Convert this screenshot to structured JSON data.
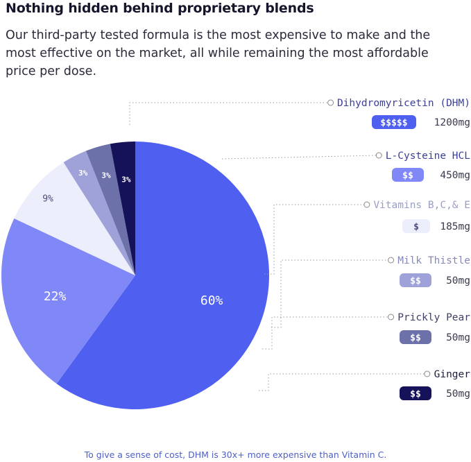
{
  "heading": {
    "title": "Nothing hidden behind proprietary blends",
    "subtitle": "Our third-party tested formula is the most expensive to make and the most effective on the market, all while remaining the most affordable price per dose."
  },
  "footnote": "To give a sense of cost, DHM is 30x+ more expensive than Vitamin C.",
  "chart_data": {
    "type": "pie",
    "title": "Nothing hidden behind proprietary blends",
    "slices": [
      {
        "label": "Dihydromyricetin (DHM)",
        "value": 60,
        "pct_label": "60%",
        "cost": "$$$$$",
        "dose": "1200mg",
        "color": "#4f5ff0",
        "label_color": "#3a3f9a",
        "badge_text_color": "#ffffff",
        "pct_text_color": "#ffffff"
      },
      {
        "label": "L-Cysteine HCL",
        "value": 22,
        "pct_label": "22%",
        "cost": "$$",
        "dose": "450mg",
        "color": "#8088f7",
        "label_color": "#3a3f9a",
        "badge_text_color": "#ffffff",
        "pct_text_color": "#ffffff"
      },
      {
        "label": "Vitamins B,C,& E",
        "value": 9,
        "pct_label": "9%",
        "cost": "$",
        "dose": "185mg",
        "color": "#eceefc",
        "label_color": "#9a9dc8",
        "badge_text_color": "#4a4d80",
        "pct_text_color": "#4a4d80"
      },
      {
        "label": "Milk Thistle",
        "value": 3,
        "pct_label": "3%",
        "cost": "$$",
        "dose": "50mg",
        "color": "#9ea2d8",
        "label_color": "#8588b8",
        "badge_text_color": "#ffffff",
        "pct_text_color": "#ffffff"
      },
      {
        "label": "Prickly Pear",
        "value": 3,
        "pct_label": "3%",
        "cost": "$$",
        "dose": "50mg",
        "color": "#6d71aa",
        "label_color": "#3d3f66",
        "badge_text_color": "#ffffff",
        "pct_text_color": "#ffffff"
      },
      {
        "label": "Ginger",
        "value": 3,
        "pct_label": "3%",
        "cost": "$$",
        "dose": "50mg",
        "color": "#16125a",
        "label_color": "#1d1d3a",
        "badge_text_color": "#ffffff",
        "pct_text_color": "#ffffff"
      }
    ]
  }
}
